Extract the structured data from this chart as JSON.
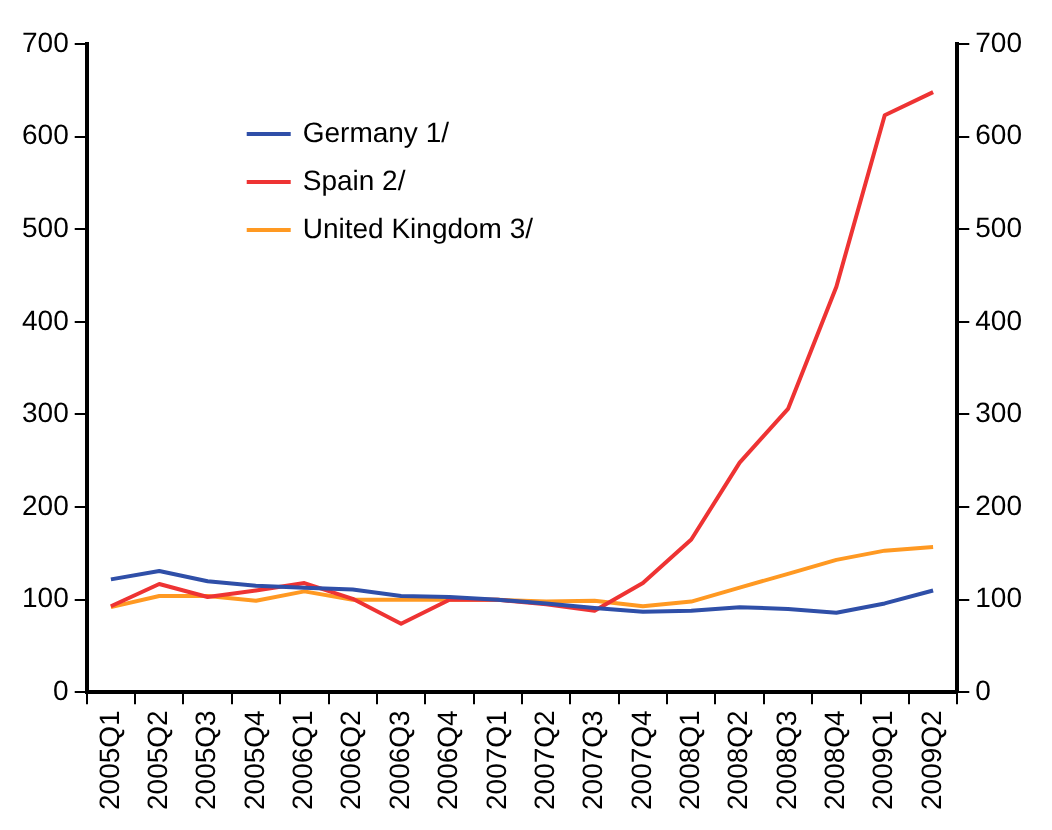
{
  "chart_data": {
    "type": "line",
    "categories": [
      "2005Q1",
      "2005Q2",
      "2005Q3",
      "2005Q4",
      "2006Q1",
      "2006Q2",
      "2006Q3",
      "2006Q4",
      "2007Q1",
      "2007Q2",
      "2007Q3",
      "2007Q4",
      "2008Q1",
      "2008Q2",
      "2008Q3",
      "2008Q4",
      "2009Q1",
      "2009Q2"
    ],
    "series": [
      {
        "name": "Germany 1/",
        "color": "#2f4fa8",
        "values": [
          122,
          131,
          120,
          115,
          113,
          111,
          104,
          103,
          100,
          96,
          91,
          87,
          88,
          92,
          90,
          86,
          96,
          110
        ]
      },
      {
        "name": "Spain 2/",
        "color": "#ee3333",
        "values": [
          93,
          117,
          103,
          110,
          118,
          101,
          74,
          100,
          100,
          95,
          88,
          118,
          165,
          248,
          306,
          438,
          623,
          648
        ]
      },
      {
        "name": "United Kingdom 3/",
        "color": "#ff9922",
        "values": [
          92,
          104,
          104,
          99,
          109,
          100,
          100,
          100,
          100,
          98,
          99,
          93,
          98,
          113,
          128,
          143,
          153,
          157
        ]
      }
    ],
    "ylim": [
      0,
      700
    ],
    "yticks": [
      0,
      100,
      200,
      300,
      400,
      500,
      600,
      700
    ],
    "y2lim": [
      0,
      700
    ],
    "y2ticks": [
      0,
      100,
      200,
      300,
      400,
      500,
      600,
      700
    ],
    "grid": false,
    "legend": "top left",
    "marker": "none",
    "line_style": "solid"
  }
}
